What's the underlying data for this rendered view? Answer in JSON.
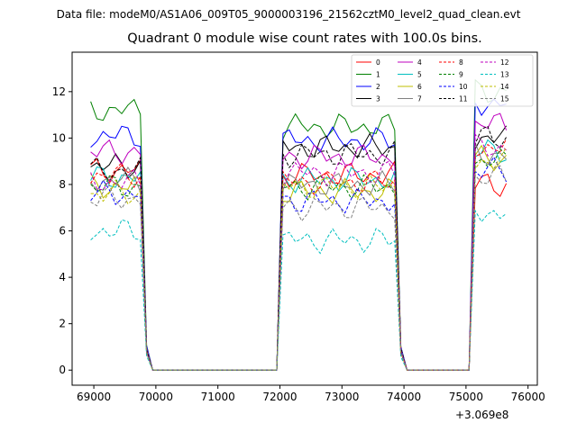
{
  "figure": {
    "suptitle": "Data file: modeM0/AS1A06_009T05_9000003196_21562cztM0_level2_quad_clean.evt",
    "title": "Quadrant 0 module wise count rates with 100.0s bins.",
    "x_offset_label": "+3.069e8"
  },
  "chart_data": {
    "type": "line",
    "title": "Quadrant 0 module wise count rates with 100.0s bins.",
    "xlabel": "",
    "ylabel": "",
    "x_offset": 306900000,
    "xlim": [
      68650,
      76150
    ],
    "ylim": [
      -0.65,
      13.7
    ],
    "xticks": [
      69000,
      70000,
      71000,
      72000,
      73000,
      74000,
      75000,
      76000
    ],
    "xtick_labels": [
      "69000",
      "70000",
      "71000",
      "72000",
      "73000",
      "74000",
      "75000",
      "76000"
    ],
    "yticks": [
      0,
      2,
      4,
      6,
      8,
      10,
      12
    ],
    "ytick_labels": [
      "0",
      "2",
      "4",
      "6",
      "8",
      "10",
      "12"
    ],
    "grid": false,
    "legend_position": "top-right",
    "legend_columns": 4,
    "segments": [
      {
        "start": 68950,
        "end": 69850,
        "active": true
      },
      {
        "start": 69950,
        "end": 71950,
        "active": false
      },
      {
        "start": 71950,
        "end": 73950,
        "active": true
      },
      {
        "start": 74050,
        "end": 75050,
        "active": false
      },
      {
        "start": 75050,
        "end": 75650,
        "active": true
      }
    ],
    "x_step": 100,
    "series": [
      {
        "name": "0",
        "color": "#ff0000",
        "dash": "solid",
        "levels": [
          8.6,
          8.4,
          8.0
        ]
      },
      {
        "name": "1",
        "color": "#008000",
        "dash": "solid",
        "levels": [
          11.2,
          10.5,
          12.0
        ]
      },
      {
        "name": "2",
        "color": "#0000ff",
        "dash": "solid",
        "levels": [
          10.1,
          9.9,
          11.5
        ]
      },
      {
        "name": "3",
        "color": "#000000",
        "dash": "solid",
        "levels": [
          8.8,
          9.6,
          10.0
        ]
      },
      {
        "name": "4",
        "color": "#bf00bf",
        "dash": "solid",
        "levels": [
          9.4,
          9.2,
          10.6
        ]
      },
      {
        "name": "5",
        "color": "#00bfbf",
        "dash": "solid",
        "levels": [
          8.3,
          8.2,
          9.4
        ]
      },
      {
        "name": "6",
        "color": "#bfbf00",
        "dash": "solid",
        "levels": [
          7.9,
          7.7,
          9.1
        ]
      },
      {
        "name": "7",
        "color": "#808080",
        "dash": "solid",
        "levels": [
          8.2,
          8.0,
          9.3
        ]
      },
      {
        "name": "8",
        "color": "#ff0000",
        "dash": "dashed",
        "levels": [
          8.4,
          8.1,
          9.6
        ]
      },
      {
        "name": "9",
        "color": "#008000",
        "dash": "dashed",
        "levels": [
          7.9,
          7.9,
          9.0
        ]
      },
      {
        "name": "10",
        "color": "#0000ff",
        "dash": "dashed",
        "levels": [
          7.6,
          7.3,
          8.6
        ]
      },
      {
        "name": "11",
        "color": "#000000",
        "dash": "dashed",
        "levels": [
          8.6,
          9.3,
          10.0
        ]
      },
      {
        "name": "12",
        "color": "#bf00bf",
        "dash": "dashed",
        "levels": [
          8.1,
          8.5,
          9.6
        ]
      },
      {
        "name": "13",
        "color": "#00bfbf",
        "dash": "dashed",
        "levels": [
          6.0,
          5.6,
          6.8
        ]
      },
      {
        "name": "14",
        "color": "#bfbf00",
        "dash": "dashed",
        "levels": [
          7.6,
          7.9,
          9.0
        ]
      },
      {
        "name": "15",
        "color": "#808080",
        "dash": "dashed",
        "levels": [
          7.4,
          7.0,
          8.3
        ]
      }
    ]
  }
}
